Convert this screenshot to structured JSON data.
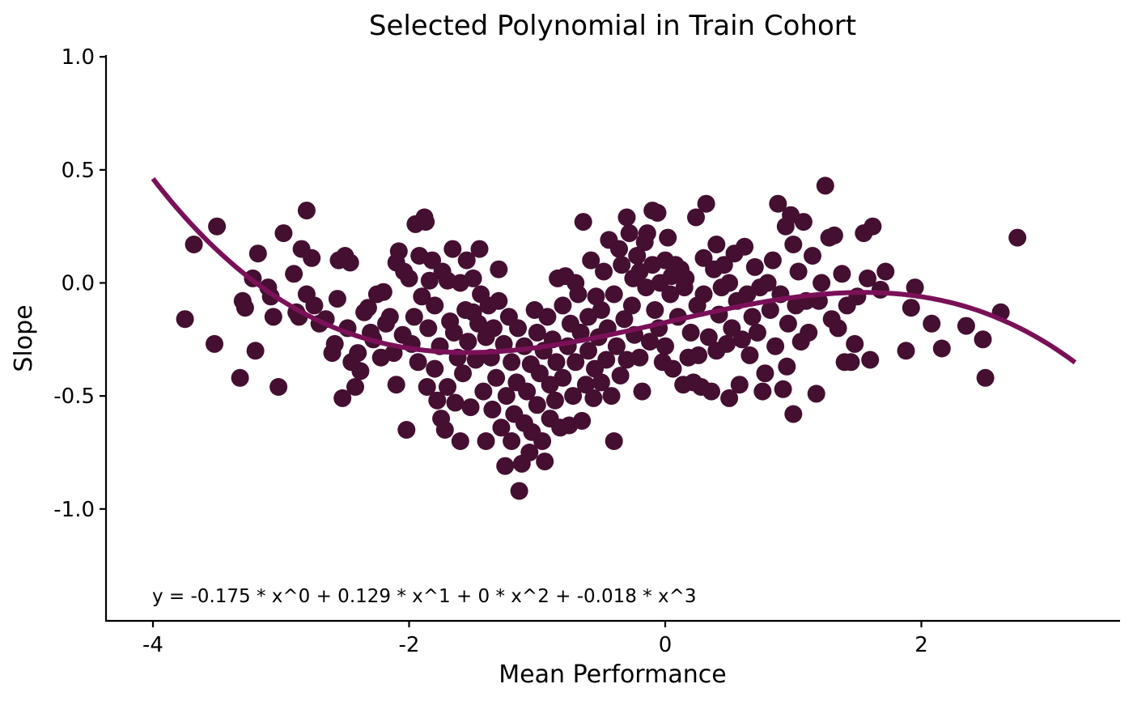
{
  "chart_data": {
    "type": "scatter",
    "title": "Selected Polynomial in Train Cohort",
    "xlabel": "Mean Performance",
    "ylabel": "Slope",
    "xlim": [
      -4.36,
      3.55
    ],
    "ylim": [
      -1.4,
      1.0
    ],
    "x_ticks": [
      -4,
      -2,
      0,
      2
    ],
    "x_tick_labels": [
      "-4",
      "-2",
      "0",
      "2"
    ],
    "y_ticks": [
      -1.0,
      -0.5,
      0.0,
      0.5,
      1.0
    ],
    "y_tick_labels": [
      "-1.0",
      "-0.5",
      "0.0",
      "0.5",
      "1.0"
    ],
    "grid": false,
    "point_color": "#440f30",
    "curve_color": "#7a1158",
    "annotation": "y = -0.175 * x^0 + 0.129 * x^1 + 0 * x^2 + -0.018 * x^3",
    "fit": {
      "coefficients": [
        -0.175,
        0.129,
        0,
        -0.018
      ],
      "x_range": [
        -4.0,
        3.2
      ]
    },
    "points": [
      [
        -3.75,
        -0.16
      ],
      [
        -3.68,
        0.17
      ],
      [
        -3.5,
        0.25
      ],
      [
        -3.52,
        -0.27
      ],
      [
        -3.32,
        -0.42
      ],
      [
        -3.3,
        -0.08
      ],
      [
        -3.28,
        -0.11
      ],
      [
        -3.22,
        0.02
      ],
      [
        -3.2,
        -0.3
      ],
      [
        -3.18,
        0.13
      ],
      [
        -3.1,
        -0.02
      ],
      [
        -3.08,
        -0.06
      ],
      [
        -3.06,
        -0.15
      ],
      [
        -3.02,
        -0.46
      ],
      [
        -2.98,
        0.22
      ],
      [
        -2.9,
        0.04
      ],
      [
        -2.88,
        -0.13
      ],
      [
        -2.86,
        -0.15
      ],
      [
        -2.84,
        0.15
      ],
      [
        -2.8,
        -0.05
      ],
      [
        -2.8,
        0.32
      ],
      [
        -2.76,
        0.11
      ],
      [
        -2.74,
        -0.1
      ],
      [
        -2.7,
        -0.18
      ],
      [
        -2.65,
        -0.16
      ],
      [
        -2.6,
        -0.31
      ],
      [
        -2.58,
        -0.27
      ],
      [
        -2.56,
        -0.07
      ],
      [
        -2.55,
        0.1
      ],
      [
        -2.52,
        -0.51
      ],
      [
        -2.5,
        0.12
      ],
      [
        -2.48,
        -0.2
      ],
      [
        -2.46,
        0.09
      ],
      [
        -2.45,
        -0.35
      ],
      [
        -2.42,
        -0.46
      ],
      [
        -2.4,
        -0.31
      ],
      [
        -2.38,
        -0.39
      ],
      [
        -2.35,
        -0.13
      ],
      [
        -2.32,
        -0.11
      ],
      [
        -2.3,
        -0.22
      ],
      [
        -2.28,
        -0.25
      ],
      [
        -2.25,
        -0.05
      ],
      [
        -2.22,
        -0.33
      ],
      [
        -2.2,
        -0.04
      ],
      [
        -2.18,
        -0.18
      ],
      [
        -2.15,
        -0.15
      ],
      [
        -2.12,
        -0.31
      ],
      [
        -2.1,
        -0.45
      ],
      [
        -2.1,
        0.09
      ],
      [
        -2.08,
        0.14
      ],
      [
        -2.05,
        -0.23
      ],
      [
        -2.04,
        0.05
      ],
      [
        -2.02,
        -0.65
      ],
      [
        -2.0,
        0.02
      ],
      [
        -1.98,
        -0.27
      ],
      [
        -1.96,
        -0.15
      ],
      [
        -1.95,
        0.26
      ],
      [
        -1.93,
        -0.35
      ],
      [
        -1.92,
        0.12
      ],
      [
        -1.9,
        -0.06
      ],
      [
        -1.88,
        0.29
      ],
      [
        -1.87,
        0.27
      ],
      [
        -1.86,
        -0.46
      ],
      [
        -1.85,
        -0.2
      ],
      [
        -1.84,
        0.01
      ],
      [
        -1.82,
        0.1
      ],
      [
        -1.8,
        -0.38
      ],
      [
        -1.8,
        -0.1
      ],
      [
        -1.78,
        -0.52
      ],
      [
        -1.76,
        -0.28
      ],
      [
        -1.75,
        -0.6
      ],
      [
        -1.74,
        0.05
      ],
      [
        -1.72,
        -0.65
      ],
      [
        -1.7,
        0.01
      ],
      [
        -1.7,
        -0.46
      ],
      [
        -1.68,
        -0.17
      ],
      [
        -1.66,
        0.15
      ],
      [
        -1.65,
        -0.22
      ],
      [
        -1.64,
        -0.53
      ],
      [
        -1.62,
        -0.33
      ],
      [
        -1.6,
        -0.7
      ],
      [
        -1.6,
        0.0
      ],
      [
        -1.58,
        -0.4
      ],
      [
        -1.56,
        -0.12
      ],
      [
        -1.55,
        0.1
      ],
      [
        -1.54,
        -0.26
      ],
      [
        -1.52,
        -0.55
      ],
      [
        -1.5,
        -0.13
      ],
      [
        -1.5,
        0.02
      ],
      [
        -1.48,
        -0.34
      ],
      [
        -1.46,
        -0.18
      ],
      [
        -1.45,
        0.15
      ],
      [
        -1.44,
        -0.05
      ],
      [
        -1.42,
        -0.48
      ],
      [
        -1.4,
        -0.24
      ],
      [
        -1.4,
        -0.7
      ],
      [
        -1.38,
        -0.1
      ],
      [
        -1.36,
        -0.33
      ],
      [
        -1.35,
        -0.56
      ],
      [
        -1.34,
        -0.2
      ],
      [
        -1.32,
        -0.42
      ],
      [
        -1.3,
        -0.08
      ],
      [
        -1.3,
        0.06
      ],
      [
        -1.28,
        -0.64
      ],
      [
        -1.26,
        -0.27
      ],
      [
        -1.25,
        -0.81
      ],
      [
        -1.24,
        -0.5
      ],
      [
        -1.22,
        -0.15
      ],
      [
        -1.2,
        -0.35
      ],
      [
        -1.2,
        -0.7
      ],
      [
        -1.18,
        -0.58
      ],
      [
        -1.16,
        -0.44
      ],
      [
        -1.15,
        -0.2
      ],
      [
        -1.14,
        -0.92
      ],
      [
        -1.12,
        -0.8
      ],
      [
        -1.1,
        -0.28
      ],
      [
        -1.1,
        -0.62
      ],
      [
        -1.08,
        -0.48
      ],
      [
        -1.06,
        -0.75
      ],
      [
        -1.05,
        -0.36
      ],
      [
        -1.04,
        -0.66
      ],
      [
        -1.02,
        -0.12
      ],
      [
        -1.0,
        -0.54
      ],
      [
        -1.0,
        -0.22
      ],
      [
        -0.98,
        -0.4
      ],
      [
        -0.96,
        -0.7
      ],
      [
        -0.95,
        -0.3
      ],
      [
        -0.94,
        -0.79
      ],
      [
        -0.92,
        -0.15
      ],
      [
        -0.9,
        -0.6
      ],
      [
        -0.9,
        -0.45
      ],
      [
        -0.88,
        -0.25
      ],
      [
        -0.86,
        -0.52
      ],
      [
        -0.85,
        -0.35
      ],
      [
        -0.84,
        0.02
      ],
      [
        -0.82,
        -0.64
      ],
      [
        -0.8,
        -0.1
      ],
      [
        -0.8,
        -0.42
      ],
      [
        -0.78,
        0.03
      ],
      [
        -0.76,
        -0.28
      ],
      [
        -0.75,
        -0.63
      ],
      [
        -0.74,
        -0.18
      ],
      [
        -0.72,
        -0.5
      ],
      [
        -0.7,
        0.0
      ],
      [
        -0.7,
        -0.35
      ],
      [
        -0.68,
        -0.05
      ],
      [
        -0.66,
        -0.22
      ],
      [
        -0.65,
        -0.61
      ],
      [
        -0.64,
        0.27
      ],
      [
        -0.62,
        -0.45
      ],
      [
        -0.6,
        -0.3
      ],
      [
        -0.6,
        -0.15
      ],
      [
        -0.58,
        0.1
      ],
      [
        -0.56,
        -0.51
      ],
      [
        -0.55,
        -0.38
      ],
      [
        -0.54,
        -0.06
      ],
      [
        -0.52,
        -0.24
      ],
      [
        -0.5,
        -0.44
      ],
      [
        -0.5,
        -0.12
      ],
      [
        -0.48,
        0.05
      ],
      [
        -0.46,
        -0.34
      ],
      [
        -0.45,
        -0.2
      ],
      [
        -0.44,
        0.19
      ],
      [
        -0.42,
        -0.5
      ],
      [
        -0.4,
        -0.7
      ],
      [
        -0.4,
        -0.05
      ],
      [
        -0.38,
        -0.28
      ],
      [
        -0.36,
        0.15
      ],
      [
        -0.35,
        -0.41
      ],
      [
        -0.34,
        0.08
      ],
      [
        -0.32,
        -0.16
      ],
      [
        -0.3,
        0.29
      ],
      [
        -0.3,
        -0.34
      ],
      [
        -0.28,
        0.22
      ],
      [
        -0.26,
        -0.1
      ],
      [
        -0.25,
        0.02
      ],
      [
        -0.24,
        -0.23
      ],
      [
        -0.22,
        0.12
      ],
      [
        -0.2,
        -0.33
      ],
      [
        -0.2,
        0.05
      ],
      [
        -0.18,
        -0.48
      ],
      [
        -0.16,
        0.18
      ],
      [
        -0.15,
        -0.02
      ],
      [
        -0.14,
        0.22
      ],
      [
        -0.12,
        -0.26
      ],
      [
        -0.1,
        0.32
      ],
      [
        -0.1,
        0.08
      ],
      [
        -0.08,
        -0.12
      ],
      [
        -0.06,
        0.31
      ],
      [
        -0.05,
        -0.2
      ],
      [
        -0.04,
        0.0
      ],
      [
        -0.02,
        -0.35
      ],
      [
        0.0,
        0.1
      ],
      [
        0.0,
        -0.28
      ],
      [
        0.02,
        0.2
      ],
      [
        0.04,
        -0.05
      ],
      [
        0.05,
        0.03
      ],
      [
        0.06,
        -0.38
      ],
      [
        0.08,
        0.08
      ],
      [
        0.1,
        -0.15
      ],
      [
        0.12,
        0.06
      ],
      [
        0.14,
        -0.45
      ],
      [
        0.15,
        -0.02
      ],
      [
        0.16,
        0.02
      ],
      [
        0.18,
        -0.33
      ],
      [
        0.2,
        -0.22
      ],
      [
        0.22,
        -0.44
      ],
      [
        0.24,
        0.29
      ],
      [
        0.25,
        -0.1
      ],
      [
        0.26,
        -0.32
      ],
      [
        0.28,
        -0.46
      ],
      [
        0.3,
        0.11
      ],
      [
        0.3,
        -0.05
      ],
      [
        0.32,
        0.35
      ],
      [
        0.34,
        -0.24
      ],
      [
        0.36,
        -0.48
      ],
      [
        0.38,
        0.06
      ],
      [
        0.4,
        -0.3
      ],
      [
        0.4,
        0.17
      ],
      [
        0.42,
        -0.14
      ],
      [
        0.44,
        -0.02
      ],
      [
        0.46,
        0.08
      ],
      [
        0.48,
        -0.27
      ],
      [
        0.5,
        -0.51
      ],
      [
        0.5,
        0.0
      ],
      [
        0.52,
        -0.2
      ],
      [
        0.54,
        0.13
      ],
      [
        0.56,
        -0.08
      ],
      [
        0.58,
        -0.45
      ],
      [
        0.6,
        -0.25
      ],
      [
        0.62,
        0.16
      ],
      [
        0.64,
        -0.05
      ],
      [
        0.66,
        -0.32
      ],
      [
        0.68,
        -0.15
      ],
      [
        0.7,
        0.07
      ],
      [
        0.72,
        -0.22
      ],
      [
        0.74,
        -0.02
      ],
      [
        0.76,
        -0.48
      ],
      [
        0.78,
        -0.4
      ],
      [
        0.8,
        0.0
      ],
      [
        0.82,
        -0.12
      ],
      [
        0.84,
        0.1
      ],
      [
        0.86,
        -0.28
      ],
      [
        0.88,
        0.35
      ],
      [
        0.9,
        -0.05
      ],
      [
        0.92,
        -0.47
      ],
      [
        0.94,
        0.25
      ],
      [
        0.95,
        -0.37
      ],
      [
        0.96,
        -0.18
      ],
      [
        0.98,
        0.3
      ],
      [
        1.0,
        -0.58
      ],
      [
        1.0,
        0.17
      ],
      [
        1.02,
        -0.1
      ],
      [
        1.04,
        0.05
      ],
      [
        1.06,
        -0.26
      ],
      [
        1.08,
        0.27
      ],
      [
        1.1,
        -0.08
      ],
      [
        1.12,
        -0.22
      ],
      [
        1.15,
        0.12
      ],
      [
        1.18,
        -0.49
      ],
      [
        1.2,
        -0.08
      ],
      [
        1.22,
        0.0
      ],
      [
        1.25,
        0.43
      ],
      [
        1.28,
        0.2
      ],
      [
        1.3,
        -0.16
      ],
      [
        1.32,
        0.21
      ],
      [
        1.35,
        -0.2
      ],
      [
        1.38,
        0.04
      ],
      [
        1.4,
        -0.35
      ],
      [
        1.42,
        -0.1
      ],
      [
        1.45,
        -0.35
      ],
      [
        1.48,
        -0.27
      ],
      [
        1.5,
        -0.06
      ],
      [
        1.55,
        0.22
      ],
      [
        1.58,
        0.02
      ],
      [
        1.6,
        -0.34
      ],
      [
        1.62,
        0.25
      ],
      [
        1.68,
        -0.03
      ],
      [
        1.72,
        0.05
      ],
      [
        1.88,
        -0.3
      ],
      [
        1.92,
        -0.11
      ],
      [
        1.95,
        -0.02
      ],
      [
        2.08,
        -0.18
      ],
      [
        2.16,
        -0.29
      ],
      [
        2.35,
        -0.19
      ],
      [
        2.48,
        -0.25
      ],
      [
        2.5,
        -0.42
      ],
      [
        2.62,
        -0.13
      ],
      [
        2.75,
        0.2
      ]
    ]
  }
}
